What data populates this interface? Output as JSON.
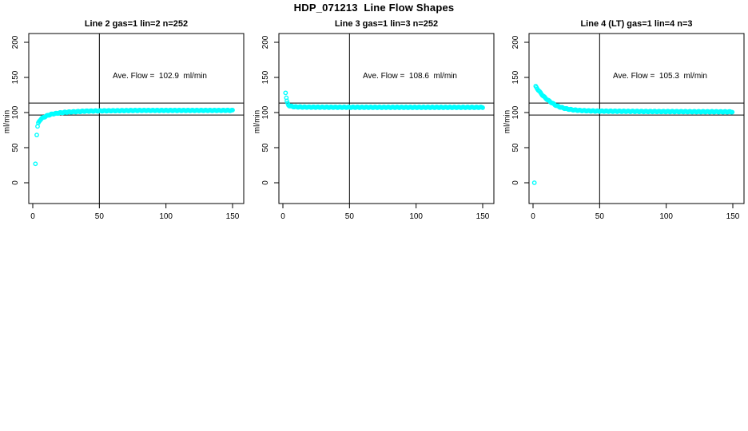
{
  "figure": {
    "title": "HDP_071213  Line Flow Shapes"
  },
  "chart_data": [
    {
      "type": "scatter",
      "title": "Line 2 gas=1 lin=2 n=252",
      "annotation": "Ave. Flow =  102.9  ml/min",
      "ave_flow": 102.9,
      "n": 252,
      "xlabel": "",
      "ylabel": "ml/min",
      "x_ticks": [
        0,
        50,
        100,
        150
      ],
      "y_ticks": [
        0,
        50,
        100,
        150,
        200
      ],
      "xlim": [
        -6,
        157
      ],
      "ylim": [
        -30,
        213
      ],
      "grid": false,
      "ref_lines": {
        "h": [
          113.5,
          96.5
        ],
        "v": [
          50
        ]
      },
      "marker_color": "#00FFFF",
      "series": [
        {
          "name": "line2-flow",
          "shape": "rise-to-asymptote",
          "outliers": [
            [
              2,
              27
            ],
            [
              3,
              68
            ]
          ],
          "anchors": [
            [
              3.6,
              80
            ],
            [
              4,
              84
            ],
            [
              5,
              88
            ],
            [
              6,
              90.5
            ],
            [
              7,
              92
            ],
            [
              8,
              93
            ],
            [
              10,
              95
            ],
            [
              12,
              96.5
            ],
            [
              15,
              98
            ],
            [
              20,
              99.5
            ],
            [
              25,
              100.5
            ],
            [
              30,
              101
            ],
            [
              40,
              102
            ],
            [
              55,
              102.5
            ],
            [
              80,
              103
            ],
            [
              120,
              103
            ],
            [
              150,
              103
            ]
          ],
          "dense_step": 0.6
        }
      ]
    },
    {
      "type": "scatter",
      "title": "Line 3 gas=1 lin=3 n=252",
      "annotation": "Ave. Flow =  108.6  ml/min",
      "ave_flow": 108.6,
      "n": 252,
      "xlabel": "",
      "ylabel": "ml/min",
      "x_ticks": [
        0,
        50,
        100,
        150
      ],
      "y_ticks": [
        0,
        50,
        100,
        150,
        200
      ],
      "xlim": [
        -6,
        157
      ],
      "ylim": [
        -30,
        213
      ],
      "grid": false,
      "ref_lines": {
        "h": [
          113.5,
          96.5
        ],
        "v": [
          50
        ]
      },
      "marker_color": "#00FFFF",
      "series": [
        {
          "name": "line3-flow",
          "shape": "decay-to-asymptote",
          "outliers": [
            [
              2,
              128
            ],
            [
              2.6,
              121
            ]
          ],
          "anchors": [
            [
              3,
              116
            ],
            [
              3.6,
              113
            ],
            [
              4,
              111
            ],
            [
              5,
              109.5
            ],
            [
              6,
              109
            ],
            [
              8,
              108.3
            ],
            [
              10,
              108
            ],
            [
              15,
              107.8
            ],
            [
              25,
              107.6
            ],
            [
              50,
              107.5
            ],
            [
              100,
              107.4
            ],
            [
              150,
              107.4
            ]
          ],
          "dense_step": 0.6
        }
      ]
    },
    {
      "type": "scatter",
      "title": "Line 4 (LT) gas=1 lin=4 n=3",
      "annotation": "Ave. Flow =  105.3  ml/min",
      "ave_flow": 105.3,
      "n": 3,
      "xlabel": "",
      "ylabel": "ml/min",
      "x_ticks": [
        0,
        50,
        100,
        150
      ],
      "y_ticks": [
        0,
        50,
        100,
        150,
        200
      ],
      "xlim": [
        -6,
        157
      ],
      "ylim": [
        -30,
        213
      ],
      "grid": false,
      "ref_lines": {
        "h": [
          113.5,
          96.5
        ],
        "v": [
          50
        ]
      },
      "marker_color": "#00FFFF",
      "series": [
        {
          "name": "line4-flow",
          "shape": "decay-to-asymptote",
          "outliers": [
            [
              1,
              0
            ]
          ],
          "anchors": [
            [
              2,
              137
            ],
            [
              3,
              134.5
            ],
            [
              4,
              132
            ],
            [
              5,
              129.5
            ],
            [
              6,
              127
            ],
            [
              7,
              125
            ],
            [
              8,
              123
            ],
            [
              9,
              121
            ],
            [
              10,
              119.5
            ],
            [
              12,
              116.5
            ],
            [
              14,
              114
            ],
            [
              16,
              111.5
            ],
            [
              18,
              109.5
            ],
            [
              20,
              108
            ],
            [
              23,
              106.3
            ],
            [
              26,
              105
            ],
            [
              30,
              103.8
            ],
            [
              35,
              103
            ],
            [
              40,
              102.5
            ],
            [
              50,
              102
            ],
            [
              65,
              101.8
            ],
            [
              85,
              101.5
            ],
            [
              110,
              101.3
            ],
            [
              150,
              101
            ]
          ],
          "dense_step": 0.6
        }
      ]
    }
  ]
}
